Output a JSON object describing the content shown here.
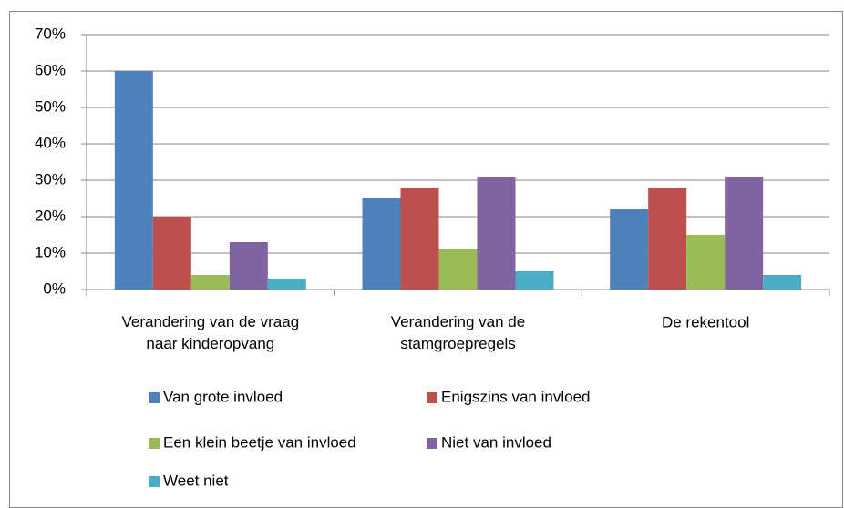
{
  "chart_data": {
    "type": "bar",
    "categories": [
      "Verandering van de vraag\nnaar kinderopvang",
      "Verandering van de\nstamgroepregels",
      "De rekentool"
    ],
    "series": [
      {
        "name": "Van grote invloed",
        "color": "#4f81bd",
        "values": [
          60,
          25,
          22
        ]
      },
      {
        "name": "Enigszins van invloed",
        "color": "#c0504d",
        "values": [
          20,
          28,
          28
        ]
      },
      {
        "name": "Een klein beetje van invloed",
        "color": "#9bbb59",
        "values": [
          4,
          11,
          15
        ]
      },
      {
        "name": "Niet van invloed",
        "color": "#8064a2",
        "values": [
          13,
          31,
          31
        ]
      },
      {
        "name": "Weet niet",
        "color": "#4bacc6",
        "values": [
          3,
          5,
          4
        ]
      }
    ],
    "ylim": [
      0,
      70
    ],
    "yticks": [
      {
        "value": 0,
        "label": "0%"
      },
      {
        "value": 10,
        "label": "10%"
      },
      {
        "value": 20,
        "label": "20%"
      },
      {
        "value": 30,
        "label": "30%"
      },
      {
        "value": 40,
        "label": "40%"
      },
      {
        "value": 50,
        "label": "50%"
      },
      {
        "value": 60,
        "label": "60%"
      },
      {
        "value": 70,
        "label": "70%"
      }
    ],
    "grid": true,
    "legend": "bottom"
  }
}
